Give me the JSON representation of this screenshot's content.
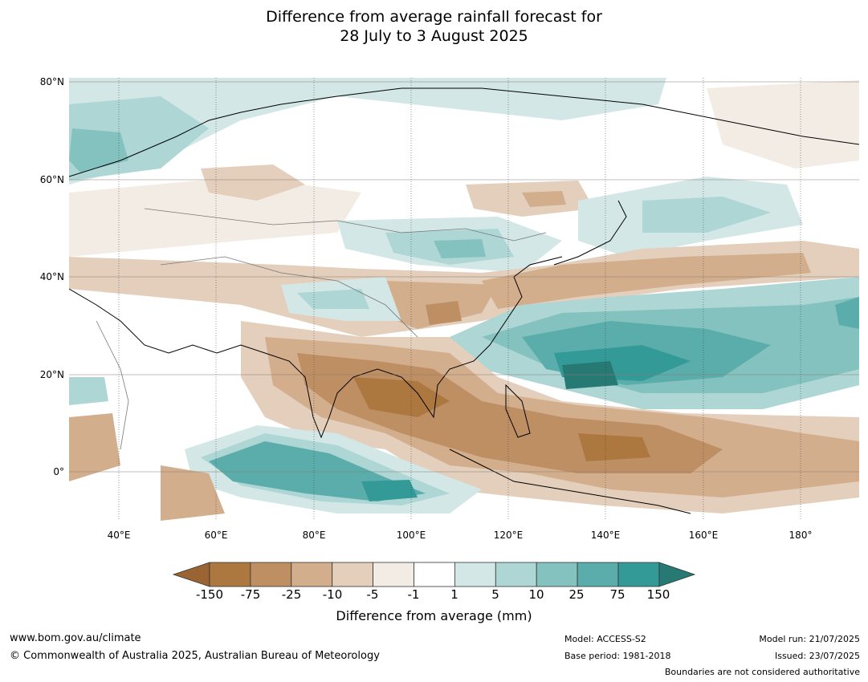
{
  "title": {
    "line1": "Difference from average rainfall forecast for",
    "line2": "28 July to 3 August 2025"
  },
  "map": {
    "lat_labels": [
      "80°N",
      "60°N",
      "40°N",
      "20°N",
      "0°"
    ],
    "lon_labels": [
      "40°E",
      "60°E",
      "80°E",
      "100°E",
      "120°E",
      "140°E",
      "160°E",
      "180°"
    ],
    "lat_range": [
      -10,
      81
    ],
    "lon_range": [
      30,
      192
    ]
  },
  "colorbar": {
    "title": "Difference from average (mm)",
    "tick_labels": [
      "-150",
      "-75",
      "-25",
      "-10",
      "-5",
      "-1",
      "1",
      "5",
      "10",
      "25",
      "75",
      "150"
    ],
    "colors": [
      "#9a6432",
      "#ad7740",
      "#bf8f64",
      "#d2ae8c",
      "#e3cfbc",
      "#f3ece5",
      "#ffffff",
      "#d3e7e6",
      "#add6d5",
      "#84c2c0",
      "#5aadaa",
      "#349a98",
      "#277a74"
    ]
  },
  "footer": {
    "url": "www.bom.gov.au/climate",
    "copyright": "© Commonwealth of Australia 2025, Australian Bureau of Meteorology",
    "model": "Model: ACCESS-S2",
    "base_period": "Base period: 1981-2018",
    "model_run": "Model run: 21/07/2025",
    "issued": "Issued: 23/07/2025",
    "boundaries": "Boundaries are not considered authoritative"
  }
}
